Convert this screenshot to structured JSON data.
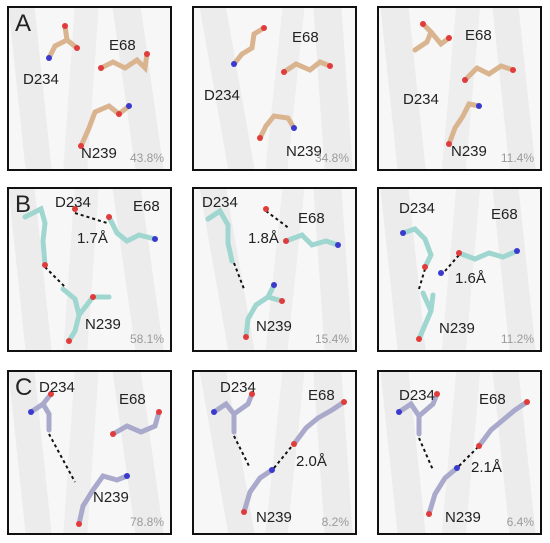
{
  "rows": [
    {
      "letter": "A",
      "color": "#d9b48f",
      "panels": [
        {
          "residues": [
            "D234",
            "E68",
            "N239"
          ],
          "distance": "",
          "percent": "43.8%"
        },
        {
          "residues": [
            "D234",
            "E68",
            "N239"
          ],
          "distance": "",
          "percent": "34.8%"
        },
        {
          "residues": [
            "D234",
            "E68",
            "N239"
          ],
          "distance": "",
          "percent": "11.4%"
        }
      ]
    },
    {
      "letter": "B",
      "color": "#9fd6cf",
      "panels": [
        {
          "residues": [
            "D234",
            "E68",
            "N239"
          ],
          "distance": "1.7Å",
          "percent": "58.1%"
        },
        {
          "residues": [
            "D234",
            "E68",
            "N239"
          ],
          "distance": "1.8Å",
          "percent": "15.4%"
        },
        {
          "residues": [
            "D234",
            "E68",
            "N239"
          ],
          "distance": "1.6Å",
          "percent": "11.2%"
        }
      ]
    },
    {
      "letter": "C",
      "color": "#a9a9cc",
      "panels": [
        {
          "residues": [
            "D234",
            "E68",
            "N239"
          ],
          "distance": "",
          "percent": "78.8%"
        },
        {
          "residues": [
            "D234",
            "E68",
            "N239"
          ],
          "distance": "2.0Å",
          "percent": "8.2%"
        },
        {
          "residues": [
            "D234",
            "E68",
            "N239"
          ],
          "distance": "2.1Å",
          "percent": "6.4%"
        }
      ]
    }
  ],
  "atom_colors": {
    "oxygen": "#e03c3c",
    "nitrogen": "#3a3acc",
    "hydrogen": "#e8e8e8",
    "bond_hbond": "#111111"
  }
}
